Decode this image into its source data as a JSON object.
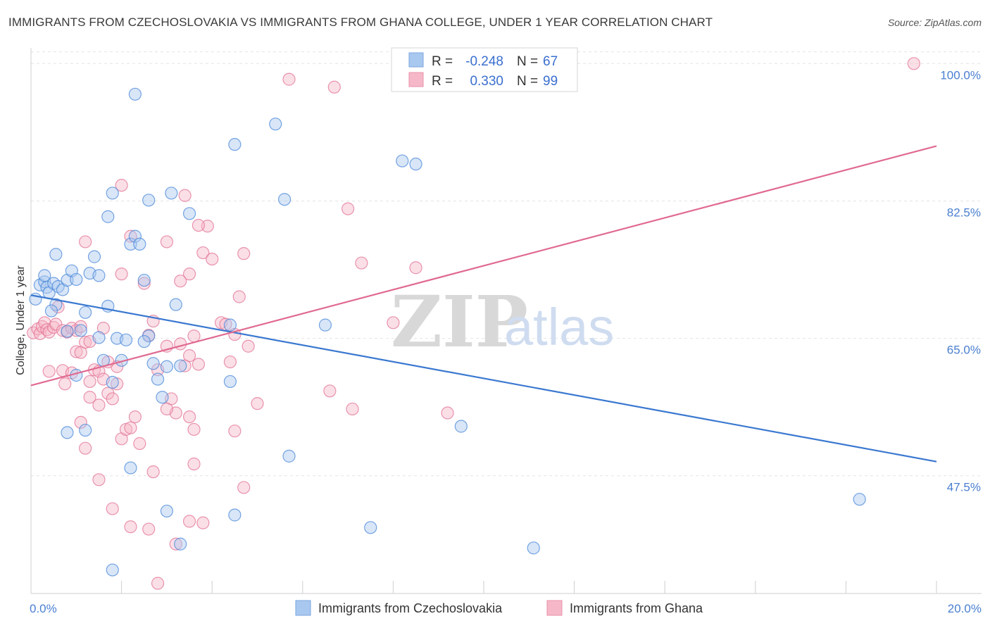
{
  "title": "IMMIGRANTS FROM CZECHOSLOVAKIA VS IMMIGRANTS FROM GHANA COLLEGE, UNDER 1 YEAR CORRELATION CHART",
  "source": "Source: ZipAtlas.com",
  "watermark": {
    "zip": "ZIP",
    "atlas": "atlas"
  },
  "legend_stats": [
    {
      "r_label": "R =",
      "r_value": "-0.248",
      "n_label": "N =",
      "n_value": "67",
      "color": "#a9c8f0"
    },
    {
      "r_label": "R =",
      "r_value": "0.330",
      "n_label": "N =",
      "n_value": "99",
      "color": "#f6b8c8"
    }
  ],
  "chart_data": {
    "type": "scatter",
    "title": "IMMIGRANTS FROM CZECHOSLOVAKIA VS IMMIGRANTS FROM GHANA COLLEGE, UNDER 1 YEAR CORRELATION CHART",
    "xlabel": "",
    "ylabel": "College, Under 1 year",
    "xlim": [
      0,
      20
    ],
    "ylim": [
      32.5,
      102
    ],
    "x_tick_labels": [
      {
        "value": 0,
        "label": "0.0%"
      },
      {
        "value": 20,
        "label": "20.0%"
      }
    ],
    "y_ticks": [
      {
        "value": 100,
        "label": "100.0%"
      },
      {
        "value": 82.5,
        "label": "82.5%"
      },
      {
        "value": 65,
        "label": "65.0%"
      },
      {
        "value": 47.5,
        "label": "47.5%"
      }
    ],
    "x_minor_ticks": [
      2,
      4,
      6,
      8,
      10,
      12,
      14,
      16,
      18
    ],
    "grid": true,
    "series": [
      {
        "name": "Immigrants from Czechoslovakia",
        "color": "#4a87d8",
        "fill": "#a9c8f0",
        "trend": {
          "x": [
            0,
            20
          ],
          "y": [
            70.5,
            49.3
          ],
          "color": "#3a78d0"
        },
        "points": [
          [
            0.1,
            70.0
          ],
          [
            0.2,
            71.8
          ],
          [
            0.3,
            72.2
          ],
          [
            0.35,
            71.5
          ],
          [
            0.4,
            70.8
          ],
          [
            0.5,
            72.0
          ],
          [
            0.55,
            69.3
          ],
          [
            0.3,
            73.0
          ],
          [
            0.45,
            68.5
          ],
          [
            0.6,
            71.6
          ],
          [
            0.7,
            71.2
          ],
          [
            0.8,
            72.4
          ],
          [
            0.9,
            73.6
          ],
          [
            1.0,
            72.5
          ],
          [
            0.55,
            75.7
          ],
          [
            0.8,
            65.9
          ],
          [
            1.1,
            66.0
          ],
          [
            1.2,
            68.3
          ],
          [
            1.3,
            73.3
          ],
          [
            1.4,
            75.4
          ],
          [
            1.5,
            73.0
          ],
          [
            1.6,
            62.2
          ],
          [
            1.7,
            69.1
          ],
          [
            1.5,
            65.1
          ],
          [
            1.8,
            59.4
          ],
          [
            1.9,
            65.0
          ],
          [
            2.0,
            62.2
          ],
          [
            2.1,
            64.8
          ],
          [
            2.2,
            77.0
          ],
          [
            2.3,
            78.0
          ],
          [
            2.4,
            77.0
          ],
          [
            2.5,
            72.4
          ],
          [
            2.6,
            65.3
          ],
          [
            2.7,
            61.8
          ],
          [
            2.8,
            59.8
          ],
          [
            2.9,
            57.5
          ],
          [
            2.2,
            48.5
          ],
          [
            2.6,
            82.6
          ],
          [
            3.0,
            61.4
          ],
          [
            3.2,
            69.3
          ],
          [
            3.3,
            61.5
          ],
          [
            3.5,
            80.9
          ],
          [
            1.7,
            80.5
          ],
          [
            1.8,
            83.5
          ],
          [
            2.3,
            96.1
          ],
          [
            3.1,
            83.5
          ],
          [
            4.5,
            89.7
          ],
          [
            5.4,
            92.3
          ],
          [
            5.6,
            82.7
          ],
          [
            4.4,
            66.7
          ],
          [
            4.4,
            59.5
          ],
          [
            3.0,
            43.0
          ],
          [
            4.5,
            42.5
          ],
          [
            5.7,
            50.0
          ],
          [
            6.5,
            66.7
          ],
          [
            7.5,
            40.9
          ],
          [
            8.2,
            87.6
          ],
          [
            8.5,
            87.2
          ],
          [
            9.5,
            53.8
          ],
          [
            11.1,
            38.3
          ],
          [
            18.3,
            44.5
          ],
          [
            1.2,
            53.3
          ],
          [
            0.8,
            53.0
          ],
          [
            1.0,
            60.3
          ],
          [
            1.8,
            35.5
          ],
          [
            3.3,
            38.8
          ],
          [
            2.5,
            64.6
          ]
        ]
      },
      {
        "name": "Immigrants from Ghana",
        "color": "#e27396",
        "fill": "#f6b8c8",
        "trend": {
          "x": [
            0,
            20
          ],
          "y": [
            59.0,
            89.5
          ],
          "color": "#e06a90"
        },
        "points": [
          [
            0.05,
            65.7
          ],
          [
            0.15,
            66.2
          ],
          [
            0.2,
            65.6
          ],
          [
            0.25,
            66.5
          ],
          [
            0.3,
            67.0
          ],
          [
            0.35,
            66.1
          ],
          [
            0.4,
            65.8
          ],
          [
            0.5,
            66.4
          ],
          [
            0.55,
            66.8
          ],
          [
            0.6,
            69.0
          ],
          [
            0.7,
            66.0
          ],
          [
            0.8,
            65.8
          ],
          [
            0.9,
            66.3
          ],
          [
            1.0,
            66.0
          ],
          [
            1.1,
            66.5
          ],
          [
            0.4,
            60.8
          ],
          [
            0.7,
            60.9
          ],
          [
            0.75,
            59.2
          ],
          [
            1.0,
            63.3
          ],
          [
            1.1,
            63.2
          ],
          [
            1.2,
            64.5
          ],
          [
            1.3,
            64.6
          ],
          [
            1.4,
            61.0
          ],
          [
            1.5,
            60.8
          ],
          [
            1.6,
            59.8
          ],
          [
            1.7,
            58.0
          ],
          [
            1.8,
            57.3
          ],
          [
            1.9,
            61.4
          ],
          [
            2.0,
            52.2
          ],
          [
            2.1,
            53.4
          ],
          [
            2.2,
            53.6
          ],
          [
            2.3,
            55.0
          ],
          [
            2.4,
            51.6
          ],
          [
            1.1,
            54.3
          ],
          [
            1.2,
            51.0
          ],
          [
            1.3,
            57.5
          ],
          [
            1.5,
            56.5
          ],
          [
            1.7,
            62.0
          ],
          [
            1.9,
            59.2
          ],
          [
            2.0,
            73.2
          ],
          [
            2.2,
            78.0
          ],
          [
            2.5,
            72.0
          ],
          [
            2.6,
            65.4
          ],
          [
            2.7,
            67.2
          ],
          [
            2.8,
            61.0
          ],
          [
            3.0,
            64.0
          ],
          [
            3.1,
            57.3
          ],
          [
            3.2,
            55.5
          ],
          [
            3.3,
            64.3
          ],
          [
            3.4,
            61.5
          ],
          [
            3.5,
            62.8
          ],
          [
            3.6,
            65.3
          ],
          [
            3.7,
            61.7
          ],
          [
            3.8,
            75.9
          ],
          [
            3.9,
            79.3
          ],
          [
            4.0,
            75.1
          ],
          [
            4.2,
            67.0
          ],
          [
            4.3,
            66.8
          ],
          [
            4.4,
            62.0
          ],
          [
            4.5,
            65.5
          ],
          [
            4.6,
            70.3
          ],
          [
            4.7,
            75.8
          ],
          [
            4.8,
            64.0
          ],
          [
            3.4,
            83.2
          ],
          [
            3.5,
            73.2
          ],
          [
            3.3,
            72.3
          ],
          [
            2.0,
            84.5
          ],
          [
            3.0,
            77.3
          ],
          [
            1.2,
            77.3
          ],
          [
            1.6,
            66.3
          ],
          [
            1.3,
            59.5
          ],
          [
            0.9,
            60.6
          ],
          [
            1.5,
            47.0
          ],
          [
            1.8,
            43.3
          ],
          [
            2.2,
            41.0
          ],
          [
            2.6,
            40.7
          ],
          [
            2.7,
            48.0
          ],
          [
            3.0,
            56.0
          ],
          [
            3.5,
            55.0
          ],
          [
            3.6,
            53.4
          ],
          [
            3.6,
            49.0
          ],
          [
            3.5,
            41.7
          ],
          [
            3.8,
            41.5
          ],
          [
            3.2,
            38.8
          ],
          [
            2.8,
            33.8
          ],
          [
            4.5,
            53.2
          ],
          [
            4.7,
            46.0
          ],
          [
            5.0,
            56.7
          ],
          [
            5.7,
            98.0
          ],
          [
            6.6,
            58.3
          ],
          [
            6.7,
            97.0
          ],
          [
            7.0,
            81.5
          ],
          [
            7.1,
            56.0
          ],
          [
            7.3,
            74.6
          ],
          [
            8.0,
            67.0
          ],
          [
            8.5,
            74.0
          ],
          [
            9.2,
            55.5
          ],
          [
            19.5,
            100.0
          ],
          [
            3.7,
            79.4
          ]
        ]
      }
    ]
  }
}
